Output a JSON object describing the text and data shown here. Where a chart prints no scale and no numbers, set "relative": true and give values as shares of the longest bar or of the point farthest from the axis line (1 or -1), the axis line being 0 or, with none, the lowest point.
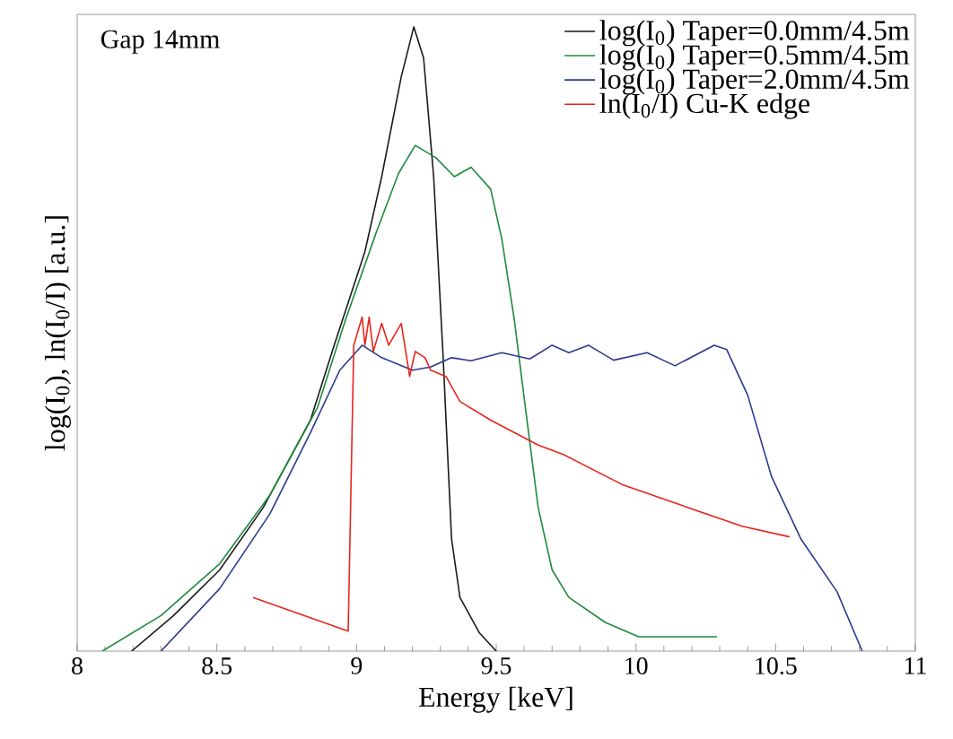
{
  "chart_data": {
    "type": "line",
    "relative": true,
    "xlabel": "Energy [keV]",
    "ylabel": "log(I$_{0}$), ln(I$_{0}$/I) [a.u.]",
    "annotations": [
      "Gap 14mm"
    ],
    "xlim": [
      8,
      11
    ],
    "xticks": [
      8,
      8.5,
      9,
      9.5,
      10,
      10.5,
      11
    ],
    "legend": "top right",
    "grid": false,
    "series": [
      {
        "name": "log(I$_{0}$) Taper=0.0mm/4.5m",
        "color": "#1a1a1a",
        "x": [
          8.195,
          8.345,
          8.51,
          8.666,
          8.835,
          8.92,
          9.03,
          9.09,
          9.16,
          9.205,
          9.24,
          9.276,
          9.31,
          9.34,
          9.37,
          9.44,
          9.5
        ],
        "values": [
          0,
          0.057,
          0.13,
          0.23,
          0.37,
          0.49,
          0.64,
          0.76,
          0.92,
          1.0,
          0.95,
          0.76,
          0.47,
          0.18,
          0.086,
          0.029,
          0
        ]
      },
      {
        "name": "log(I$_{0}$) Taper=0.5mm/4.5m",
        "color": "#1e8a3c",
        "x": [
          8.09,
          8.3,
          8.51,
          8.69,
          8.86,
          8.96,
          9.07,
          9.15,
          9.21,
          9.285,
          9.35,
          9.41,
          9.48,
          9.52,
          9.565,
          9.61,
          9.65,
          9.7,
          9.76,
          9.89,
          10.01,
          10.29
        ],
        "values": [
          0,
          0.057,
          0.14,
          0.25,
          0.39,
          0.53,
          0.67,
          0.765,
          0.81,
          0.79,
          0.76,
          0.775,
          0.74,
          0.66,
          0.53,
          0.37,
          0.23,
          0.13,
          0.086,
          0.046,
          0.023,
          0.023
        ]
      },
      {
        "name": "log(I$_{0}$) Taper=2.0mm/4.5m",
        "color": "#2b3a8f",
        "x": [
          8.3,
          8.51,
          8.69,
          8.835,
          8.94,
          9.02,
          9.09,
          9.2,
          9.265,
          9.34,
          9.41,
          9.52,
          9.62,
          9.7,
          9.76,
          9.83,
          9.92,
          10.04,
          10.14,
          10.28,
          10.325,
          10.4,
          10.485,
          10.59,
          10.72,
          10.81
        ],
        "values": [
          0,
          0.1,
          0.22,
          0.35,
          0.45,
          0.49,
          0.47,
          0.45,
          0.455,
          0.47,
          0.465,
          0.478,
          0.468,
          0.49,
          0.478,
          0.49,
          0.466,
          0.478,
          0.457,
          0.49,
          0.483,
          0.41,
          0.28,
          0.18,
          0.095,
          0
        ]
      },
      {
        "name": "ln(I$_{0}$/I) Cu-K edge",
        "color": "#e8241c",
        "x": [
          8.63,
          8.97,
          8.99,
          9.02,
          9.03,
          9.045,
          9.06,
          9.09,
          9.115,
          9.16,
          9.19,
          9.21,
          9.245,
          9.265,
          9.32,
          9.37,
          9.48,
          9.65,
          9.74,
          9.95,
          10.16,
          10.38,
          10.55
        ],
        "values": [
          0.086,
          0.032,
          0.49,
          0.535,
          0.49,
          0.535,
          0.48,
          0.525,
          0.49,
          0.525,
          0.44,
          0.48,
          0.47,
          0.45,
          0.44,
          0.4,
          0.37,
          0.33,
          0.315,
          0.267,
          0.234,
          0.2,
          0.183
        ]
      }
    ]
  }
}
